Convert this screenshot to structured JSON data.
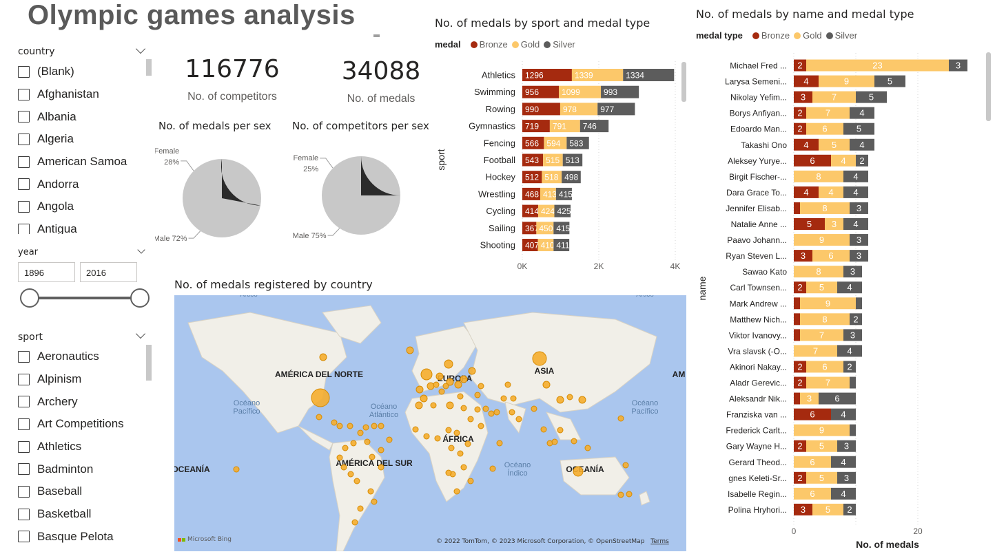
{
  "report": {
    "title": "Olympic games analysis"
  },
  "country_slicer": {
    "header": "country",
    "items": [
      "(Blank)",
      "Afghanistan",
      "Albania",
      "Algeria",
      "American Samoa",
      "Andorra",
      "Angola",
      "Antigua"
    ]
  },
  "year_slicer": {
    "header": "year",
    "from": "1896",
    "to": "2016",
    "range": [
      1896,
      2016
    ]
  },
  "sport_slicer": {
    "header": "sport",
    "items": [
      "Aeronautics",
      "Alpinism",
      "Archery",
      "Art Competitions",
      "Athletics",
      "Badminton",
      "Baseball",
      "Basketball",
      "Basque Pelota"
    ]
  },
  "kpis": {
    "competitors": {
      "value": "116776",
      "label": "No. of competitors"
    },
    "medals": {
      "value": "34088",
      "label": "No. of medals"
    }
  },
  "colors": {
    "bronze": "#a52a0f",
    "gold": "#fcc86a",
    "silver": "#5c5c5c",
    "pie_female": "#2b2b2b",
    "pie_male": "#c8c8c8",
    "map_water": "#aac6ee",
    "map_land": "#f1efe8",
    "bubble": "#f5ad2d"
  },
  "chart_data": [
    {
      "type": "pie",
      "title": "No. of medals per sex",
      "slices": [
        {
          "label": "Female",
          "value": 28,
          "text": "28%"
        },
        {
          "label": "Male",
          "value": 72,
          "text": "72%"
        }
      ]
    },
    {
      "type": "pie",
      "title": "No. of competitors per sex",
      "slices": [
        {
          "label": "Female",
          "value": 25,
          "text": "25%"
        },
        {
          "label": "Male",
          "value": 75,
          "text": "75%"
        }
      ]
    },
    {
      "type": "bar",
      "orientation": "horizontal",
      "stacked": true,
      "title": "No. of medals by sport and medal type",
      "legend_title": "medal",
      "ylabel": "sport",
      "xlim": [
        0,
        4000
      ],
      "xticks": [
        "0K",
        "2K",
        "4K"
      ],
      "categories": [
        "Athletics",
        "Swimming",
        "Rowing",
        "Gymnastics",
        "Fencing",
        "Football",
        "Hockey",
        "Wrestling",
        "Cycling",
        "Sailing",
        "Shooting"
      ],
      "series": [
        {
          "name": "Bronze",
          "values": [
            1296,
            956,
            990,
            719,
            566,
            543,
            512,
            468,
            414,
            367,
            407
          ]
        },
        {
          "name": "Gold",
          "values": [
            1339,
            1099,
            978,
            791,
            594,
            515,
            518,
            413,
            424,
            450,
            410
          ]
        },
        {
          "name": "Silver",
          "values": [
            1334,
            993,
            977,
            746,
            583,
            513,
            498,
            415,
            425,
            415,
            411
          ]
        }
      ]
    },
    {
      "type": "bar",
      "orientation": "horizontal",
      "stacked": true,
      "title": "No. of medals by name and medal type",
      "legend_title": "medal type",
      "ylabel": "name",
      "xlabel": "No. of medals",
      "xlim": [
        0,
        28
      ],
      "xticks": [
        "0",
        "20"
      ],
      "categories": [
        "Michael Fred ...",
        "Larysa Semeni...",
        "Nikolay Yefim...",
        "Borys Anfiyan...",
        "Edoardo Man...",
        "Takashi Ono",
        "Aleksey Yurye...",
        "Birgit Fischer-...",
        "Dara Grace To...",
        "Jennifer Elisab...",
        "Natalie Anne ...",
        "Paavo Johann...",
        "Ryan Steven L...",
        "Sawao Kato",
        "Carl Townsen...",
        "Mark Andrew ...",
        "Matthew Nich...",
        "Viktor Ivanovy...",
        "Vra slavsk (-O...",
        "Akinori Nakay...",
        "Aladr Gerevic...",
        "Aleksandr Nik...",
        "Franziska van ...",
        "Frederick Carlt...",
        "Gary Wayne H...",
        "Gerard Theod...",
        "gnes Keleti-Sr...",
        "Isabelle Regin...",
        "Polina Hryhori..."
      ],
      "series": [
        {
          "name": "Bronze",
          "values": [
            2,
            4,
            3,
            2,
            2,
            4,
            6,
            0,
            4,
            1,
            5,
            0,
            3,
            0,
            2,
            1,
            1,
            1,
            0,
            2,
            2,
            1,
            6,
            0,
            2,
            0,
            2,
            0,
            3
          ],
          "labels": [
            "2",
            "4",
            "3",
            "2",
            "2",
            "4",
            "6",
            "",
            "4",
            "",
            "5",
            "",
            "3",
            "",
            "2",
            "",
            "",
            "",
            "",
            "2",
            "2",
            "",
            "6",
            "",
            "2",
            "",
            "2",
            "",
            "3"
          ]
        },
        {
          "name": "Gold",
          "values": [
            23,
            9,
            7,
            7,
            6,
            5,
            4,
            8,
            4,
            8,
            3,
            9,
            6,
            8,
            5,
            9,
            8,
            7,
            7,
            6,
            7,
            3,
            0,
            9,
            5,
            6,
            5,
            6,
            5
          ],
          "labels": [
            "23",
            "9",
            "7",
            "7",
            "6",
            "5",
            "4",
            "8",
            "4",
            "8",
            "3",
            "9",
            "6",
            "8",
            "5",
            "9",
            "8",
            "7",
            "7",
            "6",
            "7",
            "3",
            "",
            "9",
            "5",
            "6",
            "5",
            "6",
            "5"
          ]
        },
        {
          "name": "Silver",
          "values": [
            3,
            5,
            5,
            4,
            5,
            4,
            2,
            4,
            4,
            3,
            4,
            3,
            3,
            3,
            4,
            1,
            2,
            3,
            4,
            2,
            1,
            6,
            4,
            1,
            3,
            4,
            3,
            4,
            2
          ],
          "labels": [
            "3",
            "5",
            "5",
            "4",
            "5",
            "4",
            "2",
            "4",
            "4",
            "3",
            "4",
            "3",
            "3",
            "3",
            "4",
            "",
            "2",
            "3",
            "4",
            "2",
            "",
            "6",
            "4",
            "",
            "3",
            "4",
            "3",
            "4",
            "2"
          ]
        }
      ]
    }
  ],
  "map": {
    "title": "No. of medals registered by country",
    "labels": [
      "Ártico",
      "Ártico",
      "AMÉRICA DEL NORTE",
      "EUROPA",
      "ASIA",
      "AM",
      "Océano Pacífico",
      "Océano Atlántico",
      "Océano Pacífico",
      "ÁFRICA",
      "AMÉRICA DEL SUR",
      "Océano Índico",
      "OCEANÍA",
      "OCEANÍA"
    ],
    "brand": "Microsoft Bing",
    "attribution": "© 2022 TomTom, © 2023 Microsoft Corporation, © OpenStreetMap",
    "terms": "Terms"
  }
}
